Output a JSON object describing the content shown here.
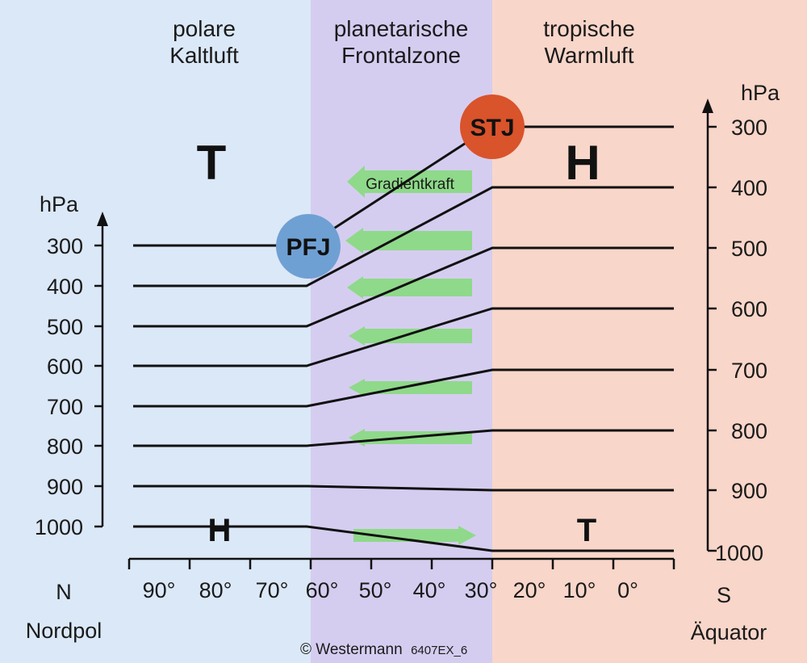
{
  "zones": [
    {
      "line1": "polare",
      "line2": "Kaltluft",
      "color": "#dbe8f7"
    },
    {
      "line1": "planetarische",
      "line2": "Frontalzone",
      "color": "#d5cdf0"
    },
    {
      "line1": "tropische",
      "line2": "Warmluft",
      "color": "#f8d6c9"
    }
  ],
  "pressure_unit": "hPa",
  "left_axis_ticks": [
    "300",
    "400",
    "500",
    "600",
    "700",
    "800",
    "900",
    "1000"
  ],
  "right_axis_ticks": [
    "300",
    "400",
    "500",
    "600",
    "700",
    "800",
    "900",
    "1000"
  ],
  "latitude_ticks": [
    "90°",
    "80°",
    "70°",
    "60°",
    "50°",
    "40°",
    "30°",
    "20°",
    "10°",
    "0°"
  ],
  "north_label": "N",
  "south_label": "S",
  "north_pole_label": "Nordpol",
  "equator_label": "Äquator",
  "pressure_systems": {
    "upper_cold": "T",
    "upper_warm": "H",
    "lower_cold": "H",
    "lower_warm": "T"
  },
  "jets": {
    "polar": {
      "label": "PFJ",
      "color": "#6fa0d3"
    },
    "subtropical": {
      "label": "STJ",
      "color": "#d9532b"
    }
  },
  "gradient_label": "Gradientkraft",
  "arrow_color": "#8fd98a",
  "copyright": "© Westermann",
  "figure_code": "6407EX_6"
}
